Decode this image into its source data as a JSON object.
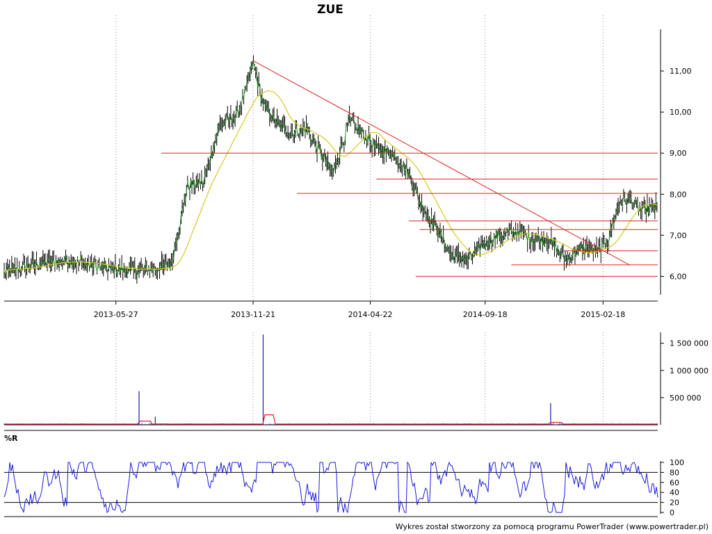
{
  "chart_data": [
    {
      "type": "ohlc",
      "title": "ZUE",
      "y_axis_side": "right",
      "ylim": [
        5.55,
        11.95
      ],
      "yticks": [
        "6,00",
        "7,00",
        "8,00",
        "9,00",
        "10,00",
        "11,00"
      ],
      "ytick_values": [
        6,
        7,
        8,
        9,
        10,
        11
      ],
      "xticks": [
        "2013-05-27",
        "2013-11-21",
        "2014-04-22",
        "2014-09-18",
        "2015-02-18"
      ],
      "x_range": [
        "2013-01-02",
        "2015-04-30"
      ],
      "grid": "dotted vertical",
      "series": [
        {
          "name": "",
          "kind": "price",
          "color": "#000000",
          "x": [
            "2013-01-02",
            "2013-02-15",
            "2013-03-29",
            "2013-05-10",
            "2013-06-21",
            "2013-07-19",
            "2013-08-07",
            "2013-08-28",
            "2013-09-18",
            "2013-10-09",
            "2013-10-30",
            "2013-11-13",
            "2013-11-21",
            "2013-12-04",
            "2013-12-18",
            "2014-01-08",
            "2014-01-29",
            "2014-02-19",
            "2014-03-05",
            "2014-03-26",
            "2014-04-16",
            "2014-04-30",
            "2014-05-21",
            "2014-06-11",
            "2014-06-25",
            "2014-07-16",
            "2014-08-06",
            "2014-08-27",
            "2014-09-17",
            "2014-10-08",
            "2014-10-29",
            "2014-11-19",
            "2014-12-10",
            "2014-12-31",
            "2015-01-21",
            "2015-02-11",
            "2015-02-25",
            "2015-03-11",
            "2015-03-25",
            "2015-04-08",
            "2015-04-30"
          ],
          "close": [
            6.1,
            6.3,
            6.4,
            6.2,
            6.15,
            6.2,
            6.3,
            8.2,
            8.3,
            9.7,
            9.9,
            10.6,
            11.2,
            10.2,
            9.8,
            9.5,
            9.6,
            8.9,
            8.5,
            9.8,
            9.4,
            9.1,
            9.0,
            8.5,
            7.8,
            7.2,
            6.5,
            6.4,
            6.8,
            7.0,
            7.1,
            6.9,
            6.9,
            6.4,
            6.7,
            6.6,
            6.9,
            7.8,
            7.9,
            7.6,
            7.7
          ]
        },
        {
          "name": "",
          "kind": "moving average",
          "color": "#d8c81e"
        }
      ],
      "trendlines": [
        {
          "from": [
            "2013-11-21",
            11.25
          ],
          "to": [
            "2015-03-25",
            6.27
          ]
        }
      ],
      "horizontal_lines": [
        {
          "y": 9.0,
          "from": "2013-07-25"
        },
        {
          "y": 8.37,
          "from": "2014-04-30"
        },
        {
          "y": 8.02,
          "from": "2014-01-17"
        },
        {
          "y": 7.35,
          "from": "2014-06-11"
        },
        {
          "y": 7.14,
          "from": "2014-06-25"
        },
        {
          "y": 6.62,
          "from": "2014-12-29"
        },
        {
          "y": 6.28,
          "from": "2014-10-22"
        },
        {
          "y": 6.0,
          "from": "2014-06-20"
        }
      ],
      "line_color": "#e02020"
    },
    {
      "type": "bar",
      "y_axis_side": "right",
      "ylim": [
        0,
        1700000
      ],
      "yticks": [
        "500 000",
        "1 000 000",
        "1 500 000"
      ],
      "ytick_values": [
        500000,
        1000000,
        1500000
      ],
      "bar_color": "#1a1aa8",
      "baseline": 15000,
      "spikes": [
        {
          "x": "2013-06-26",
          "value": 620000
        },
        {
          "x": "2013-07-17",
          "value": 150000
        },
        {
          "x": "2013-12-04",
          "value": 1660000
        },
        {
          "x": "2014-12-12",
          "value": 400000
        }
      ],
      "average_line_color": "#e02020"
    },
    {
      "type": "line",
      "title": "%R",
      "y_axis_side": "right",
      "ylim": [
        0,
        100
      ],
      "yticks": [
        "0",
        "20",
        "40",
        "60",
        "80",
        "100"
      ],
      "ytick_values": [
        0,
        20,
        40,
        60,
        80,
        100
      ],
      "reference_levels": [
        20,
        80
      ],
      "line_color": "#1a1adc"
    }
  ],
  "footer": "Wykres został stworzony za pomocą programu PowerTrader (www.powertrader.pl)"
}
